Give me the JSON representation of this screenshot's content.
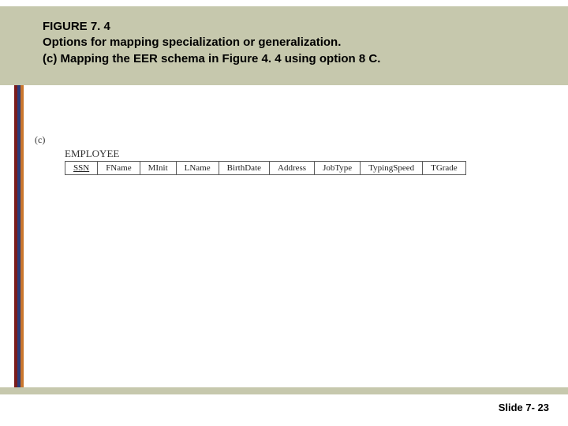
{
  "colors": {
    "header_band": "#c6c8ad",
    "stripe1": "#7a1c1c",
    "stripe2": "#2a3a7a",
    "stripe3": "#c9762e",
    "footer_rule": "#c6c8ad",
    "text": "#000000",
    "cell_border": "#5a5a5a"
  },
  "header": {
    "figure_label": "FIGURE 7. 4",
    "line1": "Options for mapping specialization or generalization.",
    "line2": "(c) Mapping the EER schema in Figure 4. 4 using option 8 C."
  },
  "diagram": {
    "part_label": "(c)",
    "entity_name": "EMPLOYEE",
    "columns": [
      {
        "name": "SSN",
        "key": true
      },
      {
        "name": "FName",
        "key": false
      },
      {
        "name": "MInit",
        "key": false
      },
      {
        "name": "LName",
        "key": false
      },
      {
        "name": "BirthDate",
        "key": false
      },
      {
        "name": "Address",
        "key": false
      },
      {
        "name": "JobType",
        "key": false
      },
      {
        "name": "TypingSpeed",
        "key": false
      },
      {
        "name": "TGrade",
        "key": false
      }
    ]
  },
  "footer": {
    "slide_number": "Slide 7- 23"
  }
}
